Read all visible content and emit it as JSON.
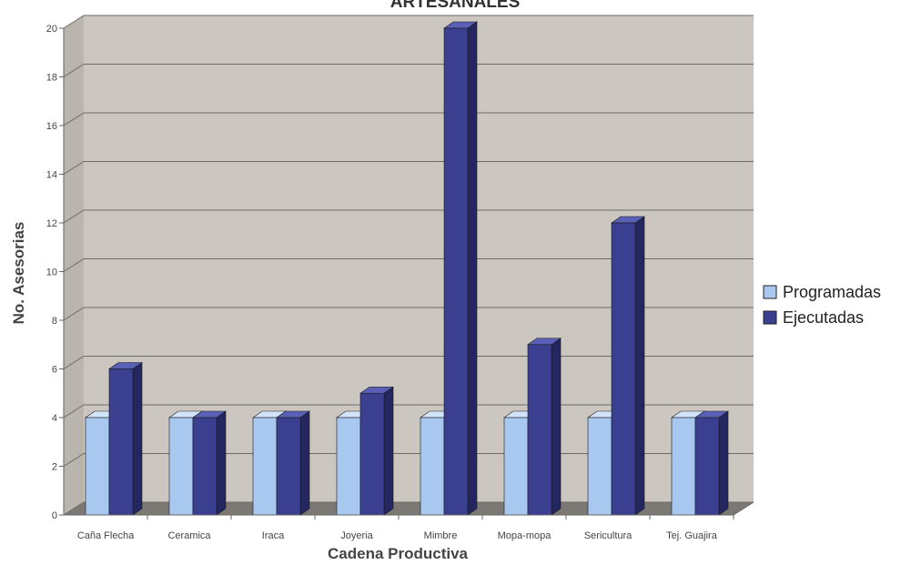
{
  "chart_data": {
    "type": "bar",
    "title": "ARTESANALES",
    "xlabel": "Cadena Productiva",
    "ylabel": "No. Asesorias",
    "ylim": [
      0,
      20
    ],
    "yticks": [
      0,
      2,
      4,
      6,
      8,
      10,
      12,
      14,
      16,
      18,
      20
    ],
    "grid": true,
    "legend_position": "right",
    "categories": [
      "Caña Flecha",
      "Ceramica",
      "Iraca",
      "Joyeria",
      "Mimbre",
      "Mopa-mopa",
      "Sericultura",
      "Tej. Guajira"
    ],
    "series": [
      {
        "name": "Programadas",
        "values": [
          4,
          4,
          4,
          4,
          4,
          4,
          4,
          4
        ],
        "color": "#a8c8f0"
      },
      {
        "name": "Ejecutadas",
        "values": [
          6,
          4,
          4,
          5,
          20,
          7,
          12,
          4
        ],
        "color": "#3a3f8f"
      }
    ]
  },
  "colors": {
    "wall": "#cbc6c0",
    "floor": "#7c7873",
    "gridline": "#6f6a66",
    "programadas_front": "#a8c8f0",
    "programadas_side": "#6d8fbf",
    "programadas_top": "#d2e4fa",
    "ejecutadas_front": "#3a3f8f",
    "ejecutadas_side": "#23265f",
    "ejecutadas_top": "#5a60b5"
  }
}
